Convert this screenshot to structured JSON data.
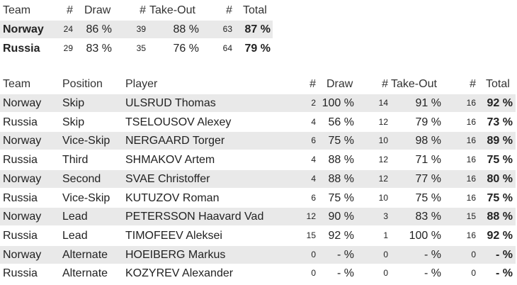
{
  "summary": {
    "headers": {
      "team": "Team",
      "draw_n": "#",
      "draw": "Draw",
      "takeout_n": "#",
      "takeout": "Take-Out",
      "total_n": "#",
      "total": "Total"
    },
    "rows": [
      {
        "team": "Norway",
        "draw_n": "24",
        "draw": "86 %",
        "takeout_n": "39",
        "takeout": "88 %",
        "total_n": "63",
        "total": "87 %"
      },
      {
        "team": "Russia",
        "draw_n": "29",
        "draw": "83 %",
        "takeout_n": "35",
        "takeout": "76 %",
        "total_n": "64",
        "total": "79 %"
      }
    ]
  },
  "players": {
    "headers": {
      "team": "Team",
      "position": "Position",
      "player": "Player",
      "draw_n": "#",
      "draw": "Draw",
      "takeout_n": "#",
      "takeout": "Take-Out",
      "total_n": "#",
      "total": "Total"
    },
    "rows": [
      {
        "team": "Norway",
        "position": "Skip",
        "player": "ULSRUD Thomas",
        "draw_n": "2",
        "draw": "100 %",
        "takeout_n": "14",
        "takeout": "91 %",
        "total_n": "16",
        "total": "92 %"
      },
      {
        "team": "Russia",
        "position": "Skip",
        "player": "TSELOUSOV Alexey",
        "draw_n": "4",
        "draw": "56 %",
        "takeout_n": "12",
        "takeout": "79 %",
        "total_n": "16",
        "total": "73 %"
      },
      {
        "team": "Norway",
        "position": "Vice-Skip",
        "player": "NERGAARD Torger",
        "draw_n": "6",
        "draw": "75 %",
        "takeout_n": "10",
        "takeout": "98 %",
        "total_n": "16",
        "total": "89 %"
      },
      {
        "team": "Russia",
        "position": "Third",
        "player": "SHMAKOV Artem",
        "draw_n": "4",
        "draw": "88 %",
        "takeout_n": "12",
        "takeout": "71 %",
        "total_n": "16",
        "total": "75 %"
      },
      {
        "team": "Norway",
        "position": "Second",
        "player": "SVAE Christoffer",
        "draw_n": "4",
        "draw": "88 %",
        "takeout_n": "12",
        "takeout": "77 %",
        "total_n": "16",
        "total": "80 %"
      },
      {
        "team": "Russia",
        "position": "Vice-Skip",
        "player": "KUTUZOV Roman",
        "draw_n": "6",
        "draw": "75 %",
        "takeout_n": "10",
        "takeout": "75 %",
        "total_n": "16",
        "total": "75 %"
      },
      {
        "team": "Norway",
        "position": "Lead",
        "player": "PETERSSON Haavard Vad",
        "draw_n": "12",
        "draw": "90 %",
        "takeout_n": "3",
        "takeout": "83 %",
        "total_n": "15",
        "total": "88 %"
      },
      {
        "team": "Russia",
        "position": "Lead",
        "player": "TIMOFEEV Aleksei",
        "draw_n": "15",
        "draw": "92 %",
        "takeout_n": "1",
        "takeout": "100 %",
        "total_n": "16",
        "total": "92 %"
      },
      {
        "team": "Norway",
        "position": "Alternate",
        "player": "HOEIBERG Markus",
        "draw_n": "0",
        "draw": "- %",
        "takeout_n": "0",
        "takeout": "- %",
        "total_n": "0",
        "total": "- %"
      },
      {
        "team": "Russia",
        "position": "Alternate",
        "player": "KOZYREV Alexander",
        "draw_n": "0",
        "draw": "- %",
        "takeout_n": "0",
        "takeout": "- %",
        "total_n": "0",
        "total": "- %"
      }
    ]
  }
}
